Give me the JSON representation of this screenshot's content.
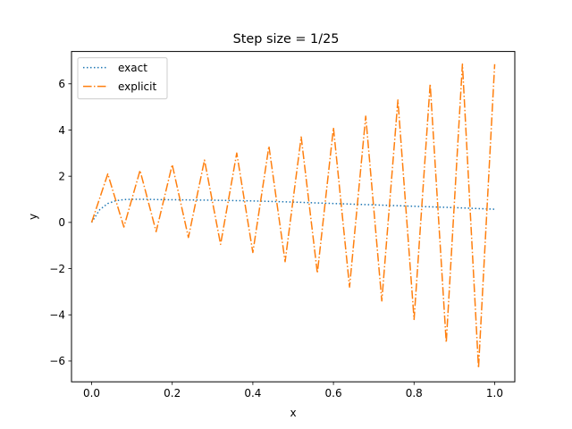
{
  "chart_data": {
    "type": "line",
    "title": "Step size = 1/25",
    "xlabel": "x",
    "ylabel": "y",
    "xlim": [
      -0.05,
      1.05
    ],
    "ylim": [
      -6.9,
      7.4
    ],
    "xticks": [
      0.0,
      0.2,
      0.4,
      0.6,
      0.8,
      1.0
    ],
    "xtick_labels": [
      "0.0",
      "0.2",
      "0.4",
      "0.6",
      "0.8",
      "1.0"
    ],
    "yticks": [
      -6,
      -4,
      -2,
      0,
      2,
      4,
      6
    ],
    "ytick_labels": [
      "−6",
      "−4",
      "−2",
      "0",
      "2",
      "4",
      "6"
    ],
    "grid": false,
    "legend_position": "top-left",
    "series": [
      {
        "name": "exact",
        "color": "#1f77b4",
        "style": "dotted",
        "x": [
          0,
          0.02,
          0.04,
          0.06,
          0.08,
          0.1,
          0.12,
          0.14,
          0.16,
          0.2,
          0.3,
          0.4,
          0.5,
          0.6,
          0.7,
          0.8,
          0.9,
          1.0
        ],
        "y": [
          0,
          0.55,
          0.82,
          0.94,
          0.99,
          1.0,
          1.0,
          1.0,
          0.99,
          0.98,
          0.96,
          0.93,
          0.88,
          0.82,
          0.76,
          0.7,
          0.64,
          0.57
        ]
      },
      {
        "name": "explicit",
        "color": "#ff7f0e",
        "style": "dashdot",
        "x": [
          0,
          0.04,
          0.08,
          0.12,
          0.16,
          0.2,
          0.24,
          0.28,
          0.32,
          0.36,
          0.4,
          0.44,
          0.48,
          0.52,
          0.56,
          0.6,
          0.64,
          0.68,
          0.72,
          0.76,
          0.8,
          0.84,
          0.88,
          0.92,
          0.96,
          1.0
        ],
        "y": [
          0,
          2.1,
          -0.2,
          2.25,
          -0.4,
          2.5,
          -0.65,
          2.7,
          -0.95,
          3.0,
          -1.3,
          3.3,
          -1.7,
          3.7,
          -2.2,
          4.1,
          -2.8,
          4.6,
          -3.4,
          5.3,
          -4.2,
          6.0,
          -5.2,
          6.85,
          -6.3,
          6.85
        ]
      }
    ]
  }
}
